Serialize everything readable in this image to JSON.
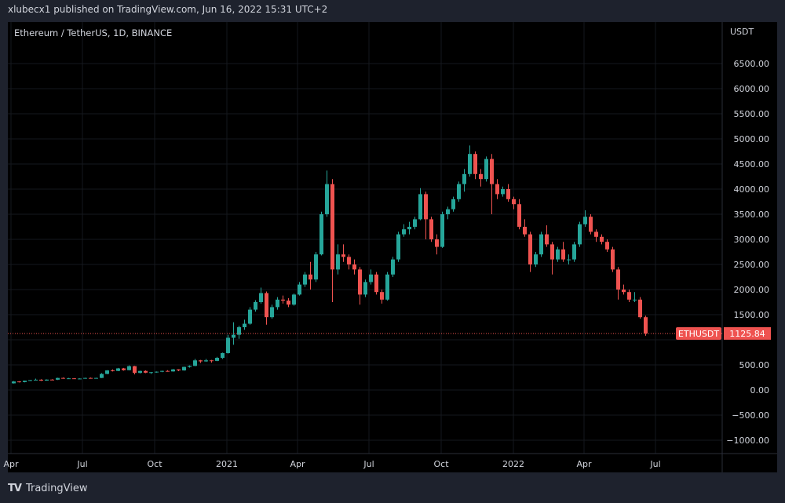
{
  "header": {
    "published": "xlubecx1 published on TradingView.com, Jun 16, 2022 15:31 UTC+2"
  },
  "footer": {
    "brand": "TradingView",
    "logo_icon": "tradingview-logo-icon"
  },
  "colors": {
    "up": "#26a69a",
    "down": "#ef5350",
    "background": "#000000",
    "frame": "#1e222d",
    "last_price": "#ef5350"
  },
  "chart_data": {
    "type": "candlestick",
    "title": "Ethereum / TetherUS, 1D, BINANCE",
    "currency_label": "USDT",
    "ylim": [
      -1250,
      7000
    ],
    "yticks": [
      -1000,
      -500,
      0,
      500,
      1000,
      1500,
      2000,
      2500,
      3000,
      3500,
      4000,
      4500,
      5000,
      5500,
      6000,
      6500
    ],
    "ytick_labels": [
      "−1000.00",
      "−500.00",
      "0.00",
      "500.00",
      "1000.00",
      "1500.00",
      "2000.00",
      "2500.00",
      "3000.00",
      "3500.00",
      "4000.00",
      "4500.00",
      "5000.00",
      "5500.00",
      "6000.00",
      "6500.00"
    ],
    "xticks": [
      {
        "label": "Apr",
        "date": "2020-04-01"
      },
      {
        "label": "Jul",
        "date": "2020-07-01"
      },
      {
        "label": "Oct",
        "date": "2020-10-01"
      },
      {
        "label": "2021",
        "date": "2021-01-01"
      },
      {
        "label": "Apr",
        "date": "2021-04-01"
      },
      {
        "label": "Jul",
        "date": "2021-07-01"
      },
      {
        "label": "Oct",
        "date": "2021-10-01"
      },
      {
        "label": "2022",
        "date": "2022-01-01"
      },
      {
        "label": "Apr",
        "date": "2022-04-01"
      },
      {
        "label": "Jul",
        "date": "2022-07-01"
      }
    ],
    "grid": true,
    "last_price": {
      "symbol": "ETHUSDT",
      "value": "1125.84"
    },
    "series_start": "2020-04-01",
    "candle_interval": "1W",
    "ohlc": [
      [
        133,
        178,
        128,
        170
      ],
      [
        170,
        176,
        150,
        158
      ],
      [
        158,
        188,
        152,
        185
      ],
      [
        185,
        199,
        180,
        197
      ],
      [
        197,
        227,
        195,
        205
      ],
      [
        205,
        215,
        180,
        187
      ],
      [
        187,
        210,
        185,
        207
      ],
      [
        207,
        215,
        198,
        205
      ],
      [
        205,
        245,
        200,
        240
      ],
      [
        240,
        250,
        225,
        230
      ],
      [
        230,
        240,
        222,
        232
      ],
      [
        232,
        236,
        218,
        225
      ],
      [
        225,
        232,
        215,
        228
      ],
      [
        228,
        245,
        225,
        240
      ],
      [
        240,
        248,
        230,
        235
      ],
      [
        235,
        245,
        230,
        240
      ],
      [
        240,
        335,
        238,
        320
      ],
      [
        320,
        395,
        315,
        390
      ],
      [
        390,
        410,
        370,
        380
      ],
      [
        380,
        440,
        375,
        430
      ],
      [
        430,
        440,
        385,
        395
      ],
      [
        395,
        490,
        390,
        475
      ],
      [
        475,
        480,
        310,
        340
      ],
      [
        340,
        385,
        330,
        380
      ],
      [
        380,
        390,
        335,
        345
      ],
      [
        345,
        360,
        320,
        355
      ],
      [
        355,
        370,
        345,
        365
      ],
      [
        365,
        385,
        355,
        380
      ],
      [
        380,
        395,
        365,
        370
      ],
      [
        370,
        420,
        365,
        410
      ],
      [
        410,
        415,
        375,
        390
      ],
      [
        390,
        465,
        385,
        460
      ],
      [
        460,
        490,
        445,
        480
      ],
      [
        480,
        620,
        475,
        590
      ],
      [
        590,
        600,
        540,
        570
      ],
      [
        570,
        620,
        560,
        590
      ],
      [
        590,
        600,
        545,
        580
      ],
      [
        580,
        660,
        575,
        640
      ],
      [
        640,
        745,
        620,
        735
      ],
      [
        735,
        1100,
        725,
        1040
      ],
      [
        1040,
        1350,
        900,
        1100
      ],
      [
        1100,
        1280,
        1020,
        1250
      ],
      [
        1250,
        1400,
        1200,
        1320
      ],
      [
        1320,
        1650,
        1300,
        1600
      ],
      [
        1600,
        1790,
        1560,
        1750
      ],
      [
        1750,
        2040,
        1720,
        1930
      ],
      [
        1930,
        1960,
        1300,
        1450
      ],
      [
        1450,
        1700,
        1420,
        1650
      ],
      [
        1650,
        1850,
        1600,
        1800
      ],
      [
        1800,
        1880,
        1720,
        1780
      ],
      [
        1780,
        1830,
        1650,
        1700
      ],
      [
        1700,
        1920,
        1680,
        1900
      ],
      [
        1900,
        2150,
        1880,
        2100
      ],
      [
        2100,
        2350,
        2050,
        2300
      ],
      [
        2300,
        2550,
        2000,
        2200
      ],
      [
        2200,
        2750,
        2150,
        2700
      ],
      [
        2700,
        3550,
        2680,
        3500
      ],
      [
        3500,
        4370,
        3450,
        4100
      ],
      [
        4100,
        4200,
        1750,
        2400
      ],
      [
        2400,
        2900,
        2300,
        2700
      ],
      [
        2700,
        2900,
        2550,
        2650
      ],
      [
        2650,
        2700,
        2400,
        2500
      ],
      [
        2500,
        2600,
        2300,
        2400
      ],
      [
        2400,
        2450,
        1700,
        1900
      ],
      [
        1900,
        2200,
        1850,
        2150
      ],
      [
        2150,
        2400,
        2100,
        2300
      ],
      [
        2300,
        2350,
        1900,
        1950
      ],
      [
        1950,
        2000,
        1720,
        1800
      ],
      [
        1800,
        2350,
        1780,
        2300
      ],
      [
        2300,
        2650,
        2250,
        2600
      ],
      [
        2600,
        3150,
        2550,
        3100
      ],
      [
        3100,
        3300,
        3050,
        3200
      ],
      [
        3200,
        3350,
        3100,
        3250
      ],
      [
        3250,
        3450,
        3200,
        3400
      ],
      [
        3400,
        4020,
        3380,
        3900
      ],
      [
        3900,
        3950,
        3000,
        3400
      ],
      [
        3400,
        3450,
        2950,
        3000
      ],
      [
        3000,
        3100,
        2700,
        2850
      ],
      [
        2850,
        3550,
        2830,
        3500
      ],
      [
        3500,
        3650,
        3400,
        3600
      ],
      [
        3600,
        3850,
        3550,
        3800
      ],
      [
        3800,
        4150,
        3750,
        4100
      ],
      [
        4100,
        4400,
        3950,
        4300
      ],
      [
        4300,
        4870,
        4250,
        4700
      ],
      [
        4700,
        4750,
        4200,
        4300
      ],
      [
        4300,
        4400,
        4050,
        4200
      ],
      [
        4200,
        4650,
        4150,
        4600
      ],
      [
        4600,
        4700,
        3500,
        4100
      ],
      [
        4100,
        4200,
        3800,
        3900
      ],
      [
        3900,
        4050,
        3850,
        4000
      ],
      [
        4000,
        4100,
        3750,
        3800
      ],
      [
        3800,
        3850,
        3600,
        3700
      ],
      [
        3700,
        3800,
        3200,
        3250
      ],
      [
        3250,
        3400,
        3050,
        3100
      ],
      [
        3100,
        3150,
        2350,
        2500
      ],
      [
        2500,
        2750,
        2450,
        2700
      ],
      [
        2700,
        3150,
        2650,
        3100
      ],
      [
        3100,
        3280,
        2850,
        2900
      ],
      [
        2900,
        2950,
        2300,
        2600
      ],
      [
        2600,
        2850,
        2550,
        2800
      ],
      [
        2800,
        2950,
        2550,
        2600
      ],
      [
        2600,
        2700,
        2500,
        2600
      ],
      [
        2600,
        2950,
        2550,
        2900
      ],
      [
        2900,
        3350,
        2850,
        3300
      ],
      [
        3300,
        3580,
        3250,
        3450
      ],
      [
        3450,
        3500,
        3100,
        3150
      ],
      [
        3150,
        3200,
        2950,
        3050
      ],
      [
        3050,
        3100,
        2900,
        2950
      ],
      [
        2950,
        3000,
        2750,
        2800
      ],
      [
        2800,
        2850,
        2350,
        2400
      ],
      [
        2400,
        2450,
        1800,
        2000
      ],
      [
        2000,
        2100,
        1900,
        1950
      ],
      [
        1950,
        2000,
        1750,
        1800
      ],
      [
        1800,
        1950,
        1750,
        1800
      ],
      [
        1800,
        1850,
        1420,
        1450
      ],
      [
        1450,
        1480,
        1080,
        1126
      ]
    ]
  }
}
